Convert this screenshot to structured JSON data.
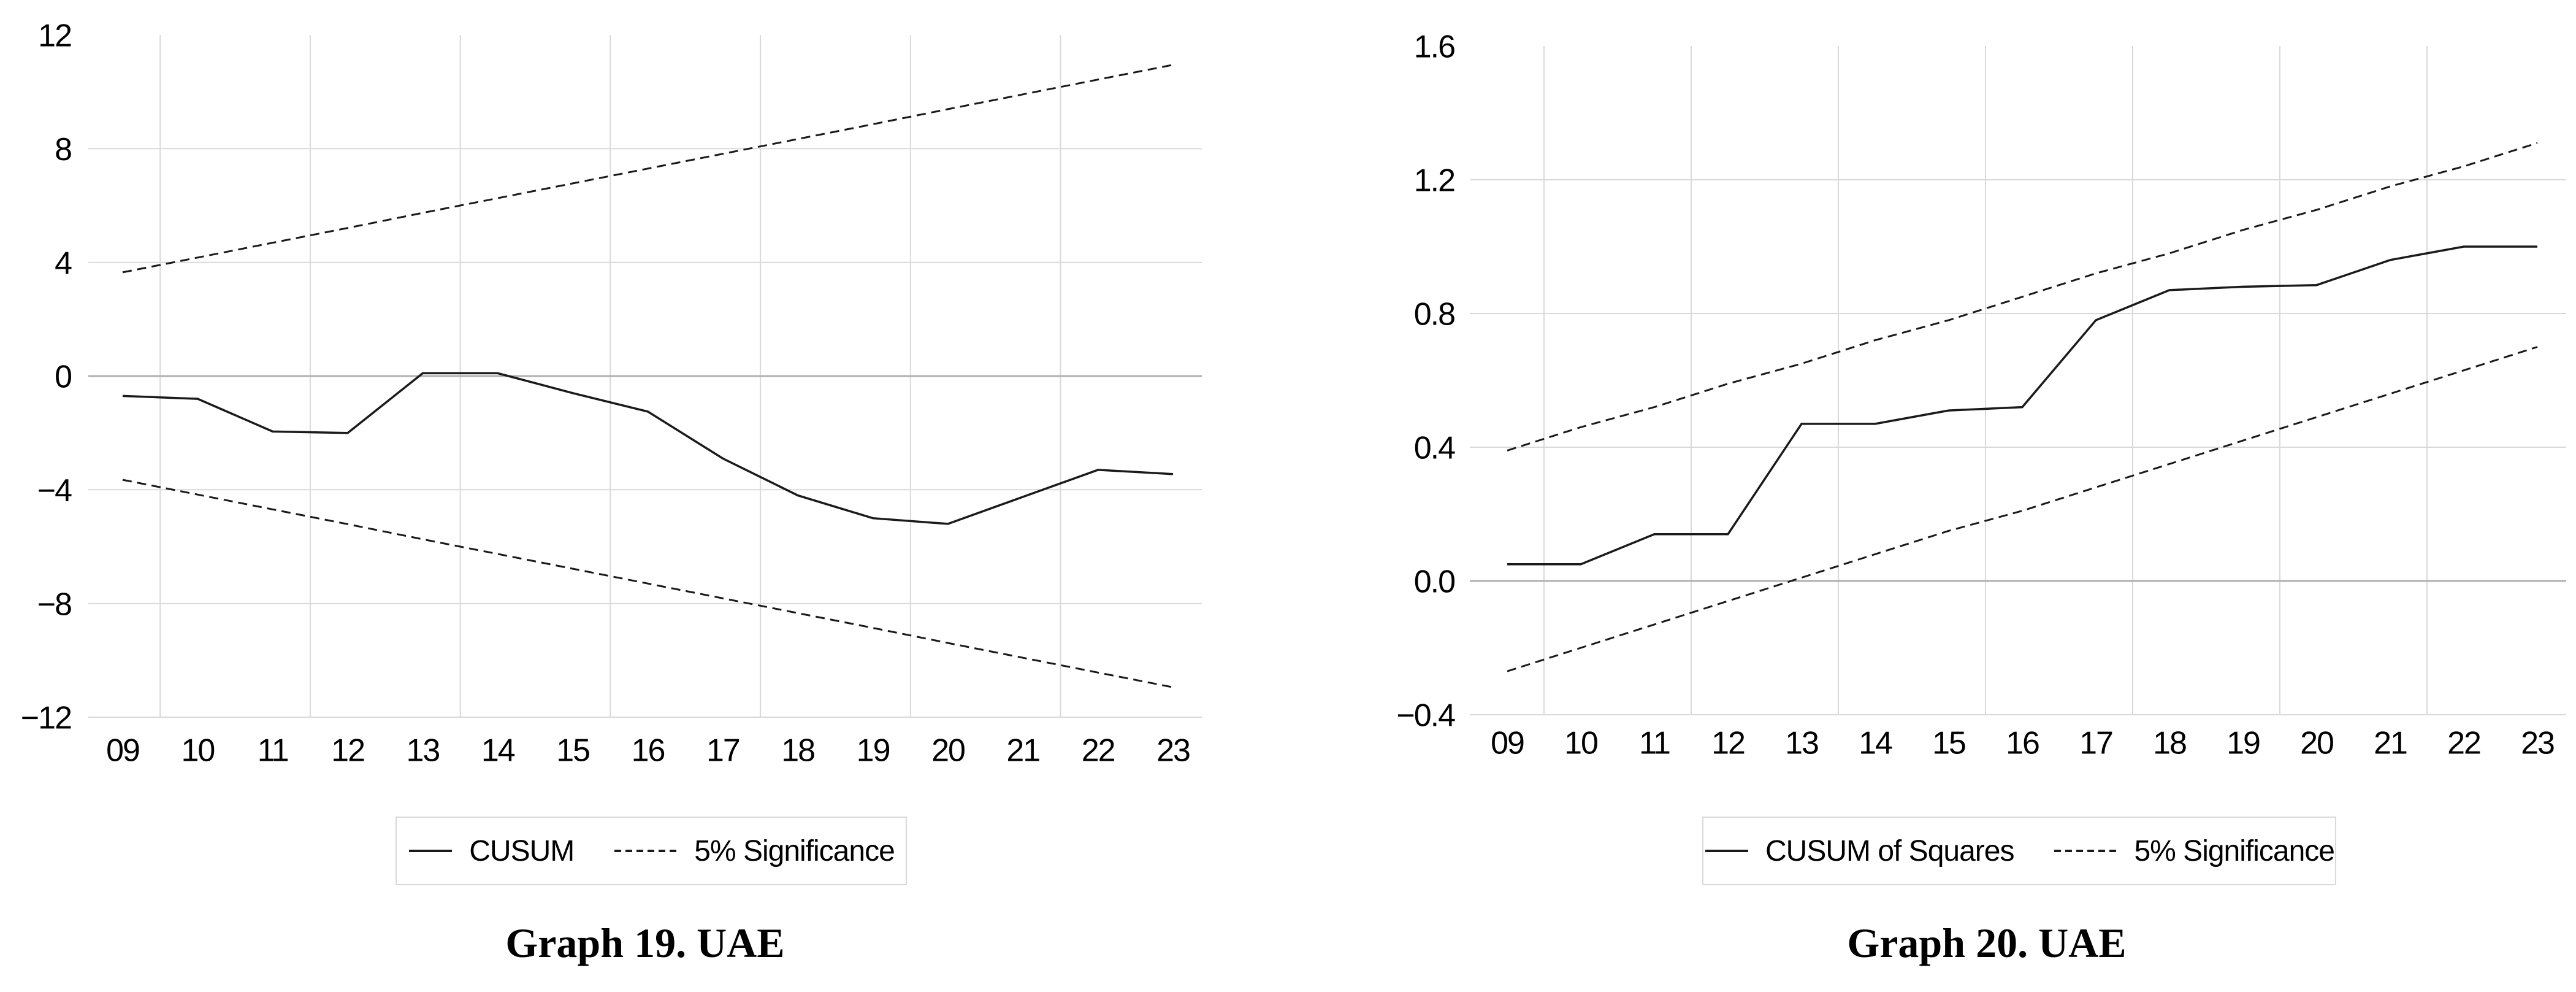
{
  "figure": {
    "background": "#ffffff",
    "colors": {
      "series_line": "#1a1a1a",
      "gridline": "#d9d9d9",
      "zero_line": "#b0b0b0",
      "legend_border": "#d9d9d9",
      "text": "#000000"
    }
  },
  "chart_data": [
    {
      "type": "line",
      "title": "",
      "caption": "Graph 19. UAE",
      "xlabel": "",
      "ylabel": "",
      "grid": "on",
      "legend_position": "below",
      "categories": [
        "09",
        "10",
        "11",
        "12",
        "13",
        "14",
        "15",
        "16",
        "17",
        "18",
        "19",
        "20",
        "21",
        "22",
        "23"
      ],
      "ylim": [
        -12,
        12
      ],
      "y_ticks": [
        {
          "value": 12,
          "label": "12"
        },
        {
          "value": 8,
          "label": "8"
        },
        {
          "value": 4,
          "label": "4"
        },
        {
          "value": 0,
          "label": "0"
        },
        {
          "value": -4,
          "label": "−4"
        },
        {
          "value": -8,
          "label": "−8"
        },
        {
          "value": -12,
          "label": "−12"
        }
      ],
      "legend": [
        {
          "label": "CUSUM",
          "style": "solid"
        },
        {
          "label": "5% Significance",
          "style": "dashed"
        }
      ],
      "series": [
        {
          "name": "CUSUM",
          "style": "solid",
          "values": [
            -0.7,
            -0.8,
            -1.95,
            -2.0,
            0.1,
            0.1,
            -0.6,
            -1.25,
            -2.9,
            -4.2,
            -5.0,
            -5.2,
            -4.25,
            -3.3,
            -3.45
          ]
        },
        {
          "name": "5% Significance upper band",
          "style": "dashed",
          "values": [
            3.65,
            4.17,
            4.69,
            5.21,
            5.74,
            6.26,
            6.78,
            7.3,
            7.82,
            8.34,
            8.86,
            9.39,
            9.91,
            10.43,
            10.95
          ]
        },
        {
          "name": "5% Significance lower band",
          "style": "dashed",
          "values": [
            -3.65,
            -4.17,
            -4.69,
            -5.21,
            -5.74,
            -6.26,
            -6.78,
            -7.3,
            -7.82,
            -8.34,
            -8.86,
            -9.39,
            -9.91,
            -10.43,
            -10.95
          ]
        }
      ]
    },
    {
      "type": "line",
      "title": "",
      "caption": "Graph 20. UAE",
      "xlabel": "",
      "ylabel": "",
      "grid": "on",
      "legend_position": "below",
      "categories": [
        "09",
        "10",
        "11",
        "12",
        "13",
        "14",
        "15",
        "16",
        "17",
        "18",
        "19",
        "20",
        "21",
        "22",
        "23"
      ],
      "ylim": [
        -0.4,
        1.6
      ],
      "y_ticks": [
        {
          "value": 1.6,
          "label": "1.6"
        },
        {
          "value": 1.2,
          "label": "1.2"
        },
        {
          "value": 0.8,
          "label": "0.8"
        },
        {
          "value": 0.4,
          "label": "0.4"
        },
        {
          "value": 0.0,
          "label": "0.0"
        },
        {
          "value": -0.4,
          "label": "−0.4"
        }
      ],
      "legend": [
        {
          "label": "CUSUM of Squares",
          "style": "solid"
        },
        {
          "label": "5% Significance",
          "style": "dashed"
        }
      ],
      "series": [
        {
          "name": "CUSUM of Squares",
          "style": "solid",
          "values": [
            0.05,
            0.05,
            0.14,
            0.14,
            0.47,
            0.47,
            0.51,
            0.52,
            0.78,
            0.87,
            0.88,
            0.885,
            0.96,
            1.0,
            1.0
          ]
        },
        {
          "name": "5% Significance upper band",
          "style": "dashed",
          "values": [
            0.39,
            0.46,
            0.52,
            0.59,
            0.65,
            0.72,
            0.78,
            0.85,
            0.92,
            0.98,
            1.05,
            1.11,
            1.18,
            1.24,
            1.31
          ]
        },
        {
          "name": "5% Significance lower band",
          "style": "dashed",
          "values": [
            -0.27,
            -0.2,
            -0.13,
            -0.06,
            0.01,
            0.08,
            0.15,
            0.21,
            0.28,
            0.35,
            0.42,
            0.49,
            0.56,
            0.63,
            0.7
          ]
        }
      ]
    }
  ]
}
